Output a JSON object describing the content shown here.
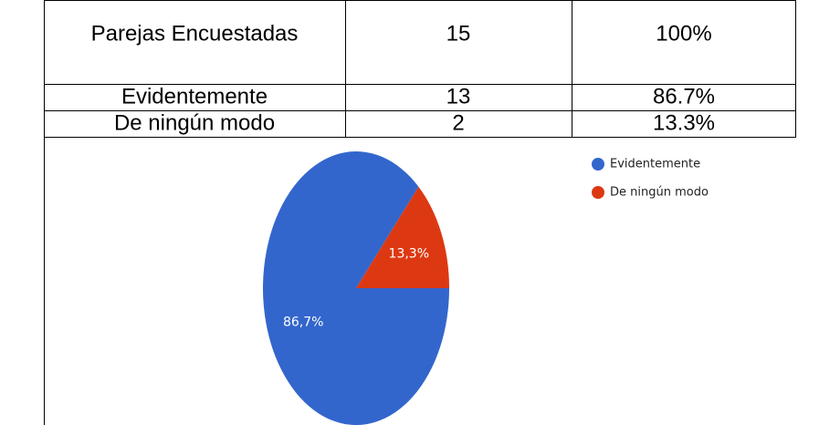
{
  "table": {
    "rows": [
      [
        "Parejas Encuestadas",
        "15",
        "100%"
      ],
      [
        "Evidentemente",
        "13",
        "86.7%"
      ],
      [
        "De ningún modo",
        "2",
        "13.3%"
      ]
    ]
  },
  "chart_data": {
    "type": "pie",
    "categories": [
      "Evidentemente",
      "De ningún modo"
    ],
    "values": [
      86.7,
      13.3
    ],
    "value_labels": [
      "86,7%",
      "13,3%"
    ],
    "colors": [
      "#3366cc",
      "#dc3912"
    ],
    "legend": "top-right"
  }
}
